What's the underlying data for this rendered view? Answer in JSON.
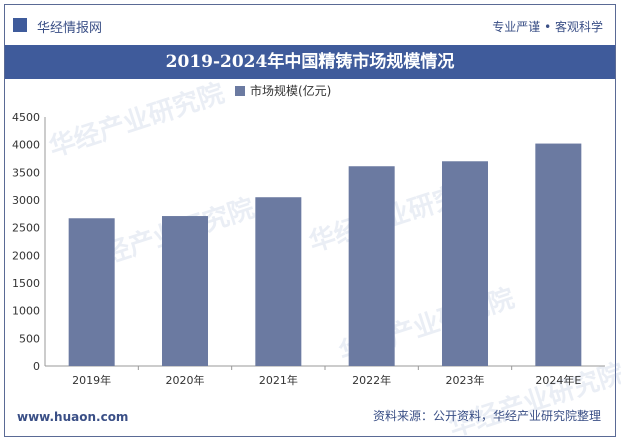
{
  "header": {
    "brand": "华经情报网",
    "tagline": "专业严谨 • 客观科学"
  },
  "title": "2019-2024年中国精铸市场规模情况",
  "footer": {
    "website": "www.huaon.com",
    "source": "资料来源：公开资料，华经产业研究院整理"
  },
  "watermark": {
    "name": "华经产业研究院",
    "url": "www.huaon.com"
  },
  "colors": {
    "accent": "#3f5b9b",
    "bar": "#6b7aa1",
    "text": "#333333"
  },
  "chart_data": {
    "type": "bar",
    "categories": [
      "2019年",
      "2020年",
      "2021年",
      "2022年",
      "2023年",
      "2024年E"
    ],
    "series": [
      {
        "name": "市场规模(亿元)",
        "values": [
          2670,
          2710,
          3050,
          3610,
          3700,
          4020
        ]
      }
    ],
    "ylim": [
      0,
      4500
    ],
    "yticks": [
      0,
      500,
      1000,
      1500,
      2000,
      2500,
      3000,
      3500,
      4000,
      4500
    ],
    "legend_position": "top",
    "grid": false
  }
}
